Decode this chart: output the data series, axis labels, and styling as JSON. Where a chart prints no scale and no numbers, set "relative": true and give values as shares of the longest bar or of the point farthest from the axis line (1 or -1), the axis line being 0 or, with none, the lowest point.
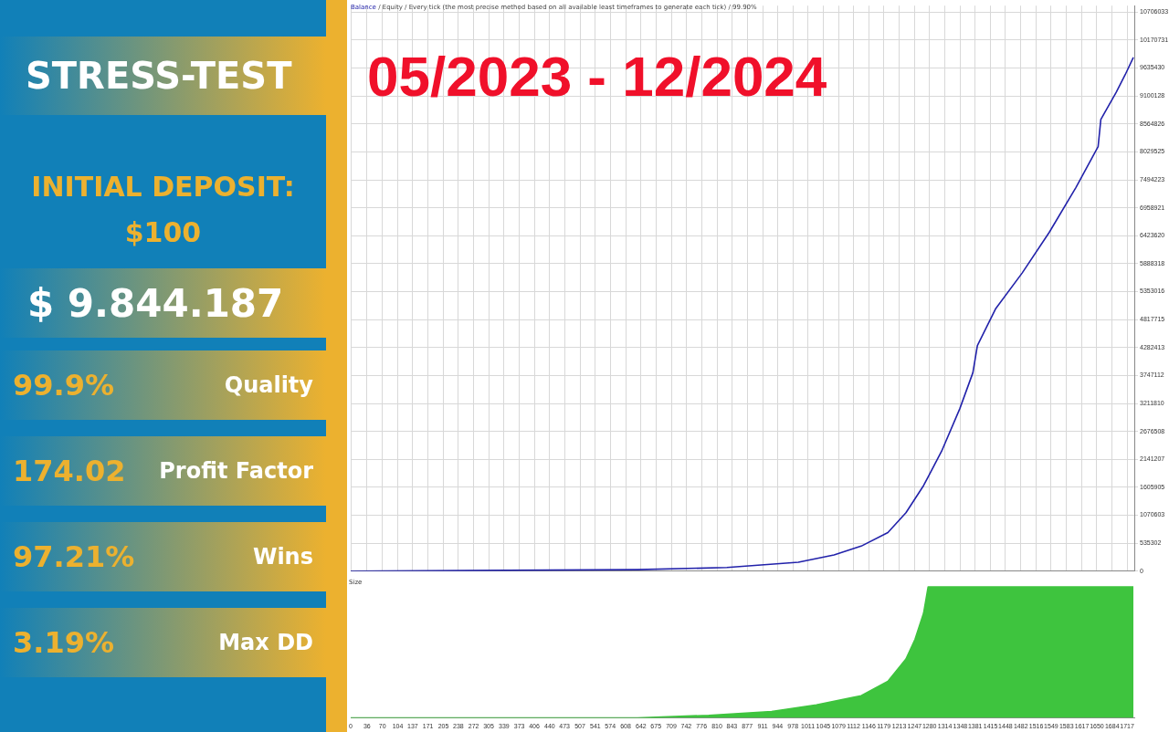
{
  "chart_data": [
    {
      "type": "other",
      "title": "STRESS-TEST",
      "annotations": [
        "INITIAL DEPOSIT:",
        "$100",
        "$ 9.844.187",
        "99.9%",
        "Quality",
        "174.02",
        "Profit Factor",
        "97.21%",
        "Wins",
        "3.19%",
        "Max DD"
      ]
    },
    {
      "type": "line",
      "title": "05/2023 - 12/2024",
      "annotations": [
        "/ Equity / Every tick (the most precise method based on all available least timeframes to generate each tick) / 99.90%"
      ],
      "legend": "top left",
      "marker": "none",
      "grid": true,
      "tick_labels": "y",
      "xlim": [
        0,
        1733
      ],
      "ylim": [
        0,
        10830000
      ],
      "xticks": [
        0,
        36,
        70,
        104,
        137,
        171,
        205,
        238,
        272,
        305,
        339,
        373,
        406,
        440,
        473,
        507,
        541,
        574,
        608,
        642,
        675,
        709,
        742,
        776,
        810,
        843,
        877,
        911,
        944,
        978,
        1011,
        1045,
        1079,
        1112,
        1146,
        1179,
        1213,
        1247,
        1280,
        1314,
        1348,
        1381,
        1415,
        1448,
        1482,
        1516,
        1549,
        1583,
        1617,
        1650,
        1684,
        1717
      ],
      "yticks": [
        0,
        535302,
        1070603,
        1605905,
        2141207,
        2676508,
        3211810,
        3747112,
        4282413,
        4817715,
        5353016,
        5888318,
        6423620,
        6958921,
        7494223,
        8029525,
        8564826,
        9100128,
        9635430,
        10170731,
        10706033
      ],
      "series": [
        {
          "name": "Balance",
          "color": "#2222aa",
          "x": [
            0,
            634,
            832,
            990,
            1069,
            1129,
            1188,
            1228,
            1267,
            1307,
            1347,
            1376,
            1386,
            1426,
            1485,
            1545,
            1604,
            1653,
            1659,
            1693,
            1713,
            1731
          ],
          "values": [
            0,
            30000,
            70000,
            170000,
            310000,
            480000,
            740000,
            1120000,
            1640000,
            2300000,
            3110000,
            3800000,
            4320000,
            5020000,
            5710000,
            6490000,
            7350000,
            8130000,
            8650000,
            9170000,
            9510000,
            9840000
          ]
        }
      ]
    },
    {
      "type": "area",
      "title": "Size",
      "relative": true,
      "tick_labels": "x",
      "marker": "none",
      "xlim": [
        0,
        1733
      ],
      "xticks": [
        0,
        36,
        70,
        104,
        137,
        171,
        205,
        238,
        272,
        305,
        339,
        373,
        406,
        440,
        473,
        507,
        541,
        574,
        608,
        642,
        675,
        709,
        742,
        776,
        810,
        843,
        877,
        911,
        944,
        978,
        1011,
        1045,
        1079,
        1112,
        1146,
        1179,
        1213,
        1247,
        1280,
        1314,
        1348,
        1381,
        1415,
        1448,
        1482,
        1516,
        1549,
        1583,
        1617,
        1650,
        1684,
        1717
      ],
      "series": [
        {
          "color": "#3ec43e",
          "x": [
            0,
            634,
            792,
            931,
            1030,
            1129,
            1188,
            1228,
            1248,
            1267,
            1277,
            1731
          ],
          "values": [
            0,
            0,
            0.02,
            0.05,
            0.1,
            0.17,
            0.28,
            0.45,
            0.6,
            0.8,
            1,
            1
          ]
        }
      ]
    }
  ]
}
